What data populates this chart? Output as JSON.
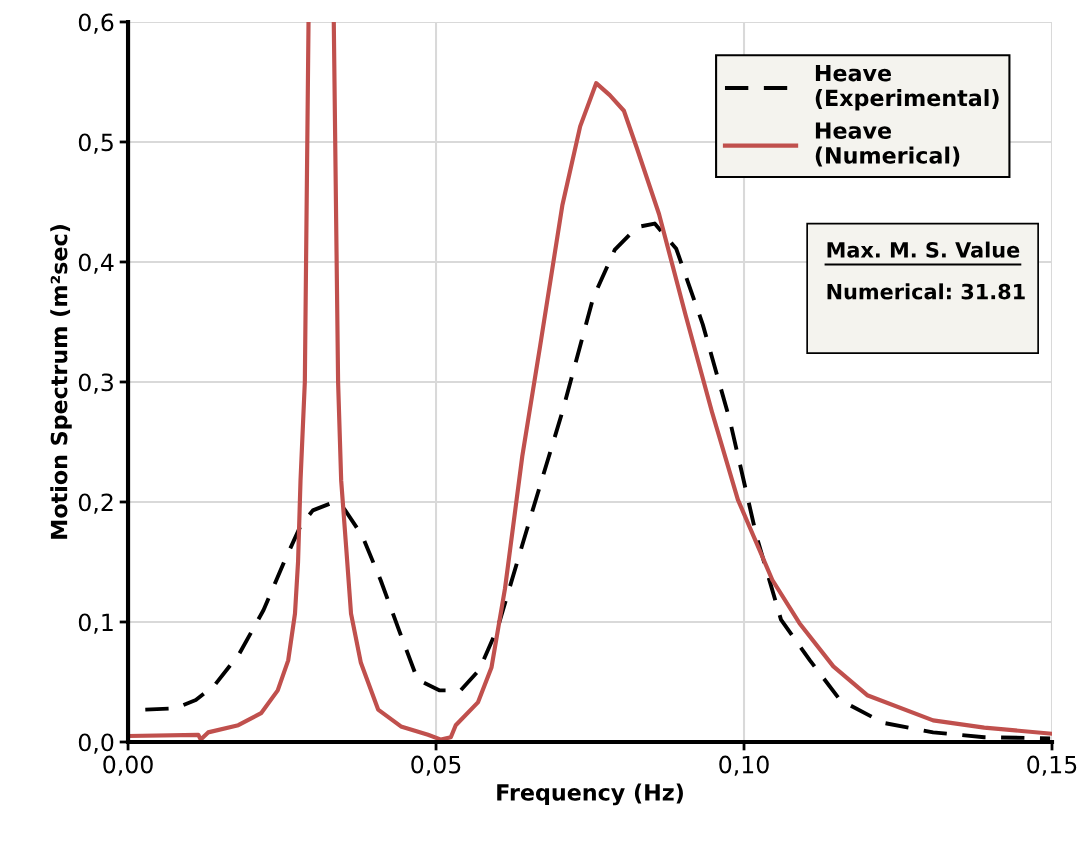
{
  "chart_data": {
    "type": "line",
    "xlabel": "Frequency (Hz)",
    "ylabel": "Motion Spectrum (m²sec)",
    "xlim": [
      0,
      0.15
    ],
    "ylim": [
      0,
      0.6
    ],
    "xticks": [
      {
        "value": 0,
        "label": "0,00"
      },
      {
        "value": 0.05,
        "label": "0,05"
      },
      {
        "value": 0.1,
        "label": "0,10"
      },
      {
        "value": 0.15,
        "label": "0,15"
      }
    ],
    "yticks": [
      {
        "value": 0,
        "label": "0,0"
      },
      {
        "value": 0.1,
        "label": "0,1"
      },
      {
        "value": 0.2,
        "label": "0,2"
      },
      {
        "value": 0.3,
        "label": "0,3"
      },
      {
        "value": 0.4,
        "label": "0,4"
      },
      {
        "value": 0.5,
        "label": "0,5"
      },
      {
        "value": 0.6,
        "label": "0,6"
      }
    ],
    "grid": true,
    "legend": "top right",
    "marker": "none",
    "annotations": [
      "Max. M. S. Value",
      "Numerical: 31.81"
    ],
    "series": [
      {
        "name": "Heave (Experimental)",
        "color": "#000000",
        "line_style": "dashed",
        "x": [
          0.0028,
          0.0076,
          0.011,
          0.014,
          0.018,
          0.022,
          0.0255,
          0.028,
          0.03,
          0.033,
          0.035,
          0.038,
          0.041,
          0.044,
          0.047,
          0.0506,
          0.054,
          0.057,
          0.06,
          0.0655,
          0.0705,
          0.0755,
          0.079,
          0.0826,
          0.0855,
          0.089,
          0.0933,
          0.0977,
          0.102,
          0.106,
          0.1107,
          0.1156,
          0.1226,
          0.1307,
          0.139,
          0.1497
        ],
        "values": [
          0.027,
          0.028,
          0.035,
          0.047,
          0.073,
          0.11,
          0.152,
          0.18,
          0.193,
          0.199,
          0.195,
          0.172,
          0.135,
          0.093,
          0.052,
          0.043,
          0.043,
          0.06,
          0.095,
          0.19,
          0.275,
          0.37,
          0.41,
          0.429,
          0.432,
          0.411,
          0.348,
          0.268,
          0.172,
          0.102,
          0.068,
          0.035,
          0.016,
          0.008,
          0.004,
          0.003
        ]
      },
      {
        "name": "Heave (Numerical)",
        "color": "#c0504d",
        "line_style": "solid",
        "x": [
          0,
          0.0114,
          0.0118,
          0.013,
          0.0179,
          0.0216,
          0.0243,
          0.026,
          0.0271,
          0.0276,
          0.028,
          0.0287,
          0.0293,
          0.0313,
          0.0334,
          0.0341,
          0.0346,
          0.0354,
          0.0362,
          0.0378,
          0.0406,
          0.0443,
          0.0487,
          0.0508,
          0.0524,
          0.0532,
          0.0568,
          0.059,
          0.0612,
          0.064,
          0.0669,
          0.0705,
          0.0734,
          0.076,
          0.0782,
          0.0805,
          0.0826,
          0.0862,
          0.0905,
          0.0948,
          0.099,
          0.1046,
          0.109,
          0.1145,
          0.12,
          0.1307,
          0.139,
          0.1497
        ],
        "values": [
          0.005,
          0.006,
          0.002,
          0.008,
          0.014,
          0.024,
          0.043,
          0.068,
          0.107,
          0.15,
          0.218,
          0.3,
          0.6,
          null,
          0.6,
          0.3,
          0.218,
          0.163,
          0.107,
          0.066,
          0.027,
          0.013,
          0.006,
          0.002,
          0.004,
          0.014,
          0.033,
          0.062,
          0.128,
          0.238,
          0.33,
          0.447,
          0.513,
          0.549,
          0.539,
          0.526,
          0.495,
          0.44,
          0.356,
          0.275,
          0.202,
          0.135,
          0.099,
          0.063,
          0.039,
          0.018,
          0.012,
          0.007
        ]
      }
    ]
  }
}
